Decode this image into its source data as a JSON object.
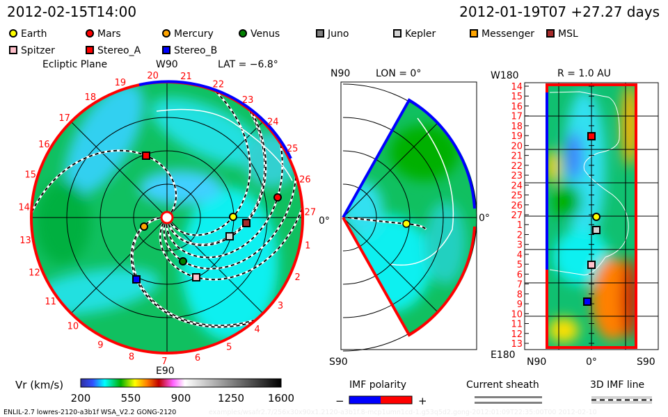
{
  "header": {
    "model_time": "2012-02-15T14:00",
    "run_info": "2012-01-19T07 +27.27 days"
  },
  "legend": {
    "items": [
      {
        "label": "Earth",
        "shape": "circle",
        "color": "#ffff00"
      },
      {
        "label": "Mars",
        "shape": "circle",
        "color": "#ff0000"
      },
      {
        "label": "Mercury",
        "shape": "circle",
        "color": "#ffa500"
      },
      {
        "label": "Venus",
        "shape": "circle",
        "color": "#008000"
      },
      {
        "label": "Juno",
        "shape": "square",
        "color": "#808080"
      },
      {
        "label": "Kepler",
        "shape": "square",
        "color": "#d3d3d3"
      },
      {
        "label": "Messenger",
        "shape": "square",
        "color": "#ffa500"
      },
      {
        "label": "MSL",
        "shape": "square",
        "color": "#a52a2a"
      },
      {
        "label": "Spitzer",
        "shape": "square",
        "color": "#ffc0cb"
      },
      {
        "label": "Stereo_A",
        "shape": "square",
        "color": "#ff0000"
      },
      {
        "label": "Stereo_B",
        "shape": "square",
        "color": "#0000ff"
      }
    ]
  },
  "ecliptic": {
    "title": "Ecliptic Plane",
    "top_label": "W90",
    "bottom_label": "E90",
    "right_label": "0°",
    "lat": "LAT = −6.8°",
    "carrington_ticks": [
      "19",
      "20",
      "21",
      "22",
      "23",
      "24",
      "25",
      "26",
      "27",
      "1",
      "2",
      "3",
      "4",
      "5",
      "6",
      "7",
      "8",
      "9",
      "10",
      "11",
      "12",
      "13",
      "14",
      "15",
      "16",
      "17",
      "18"
    ]
  },
  "meridional": {
    "top_label": "N90",
    "bottom_label": "S90",
    "right_label": "0°",
    "lon": "LON = 0°"
  },
  "radial": {
    "title": "R = 1.0 AU",
    "top_left": "W180",
    "bottom_left": "E180",
    "x_ticks": [
      "N90",
      "0°",
      "S90"
    ],
    "y_ticks": [
      "14",
      "15",
      "16",
      "17",
      "18",
      "19",
      "20",
      "21",
      "22",
      "23",
      "24",
      "25",
      "26",
      "27",
      "1",
      "2",
      "3",
      "4",
      "5",
      "6",
      "7",
      "8",
      "9",
      "10",
      "11",
      "12",
      "13"
    ]
  },
  "chart_data": {
    "type": "heatmap",
    "quantity": "Vr (km/s)",
    "colorbar": {
      "label": "Vr (km/s)",
      "ticks": [
        "200",
        "550",
        "900",
        "1250",
        "1600"
      ],
      "range": [
        200,
        1600
      ]
    },
    "panels": [
      "Ecliptic Plane",
      "LON = 0°",
      "R = 1.0 AU"
    ]
  },
  "bottom_legend": {
    "imf_title": "IMF polarity",
    "minus": "−",
    "plus": "+",
    "imf_neg_color": "#0000ff",
    "imf_pos_color": "#ff0000",
    "sheath_title": "Current sheath",
    "imf_line_title": "3D IMF line"
  },
  "footer": {
    "version": "ENLIL-2.7 lowres-2120-a3b1f WSA_V2.2 GONG-2120",
    "path": "examples/wsafr2.7/256x30x90x1.2120-a3b1f.8-mcp1umn1cd-1.g53q5d2.gong-2012:01:09T22:35:00T00    2012-02-10"
  }
}
